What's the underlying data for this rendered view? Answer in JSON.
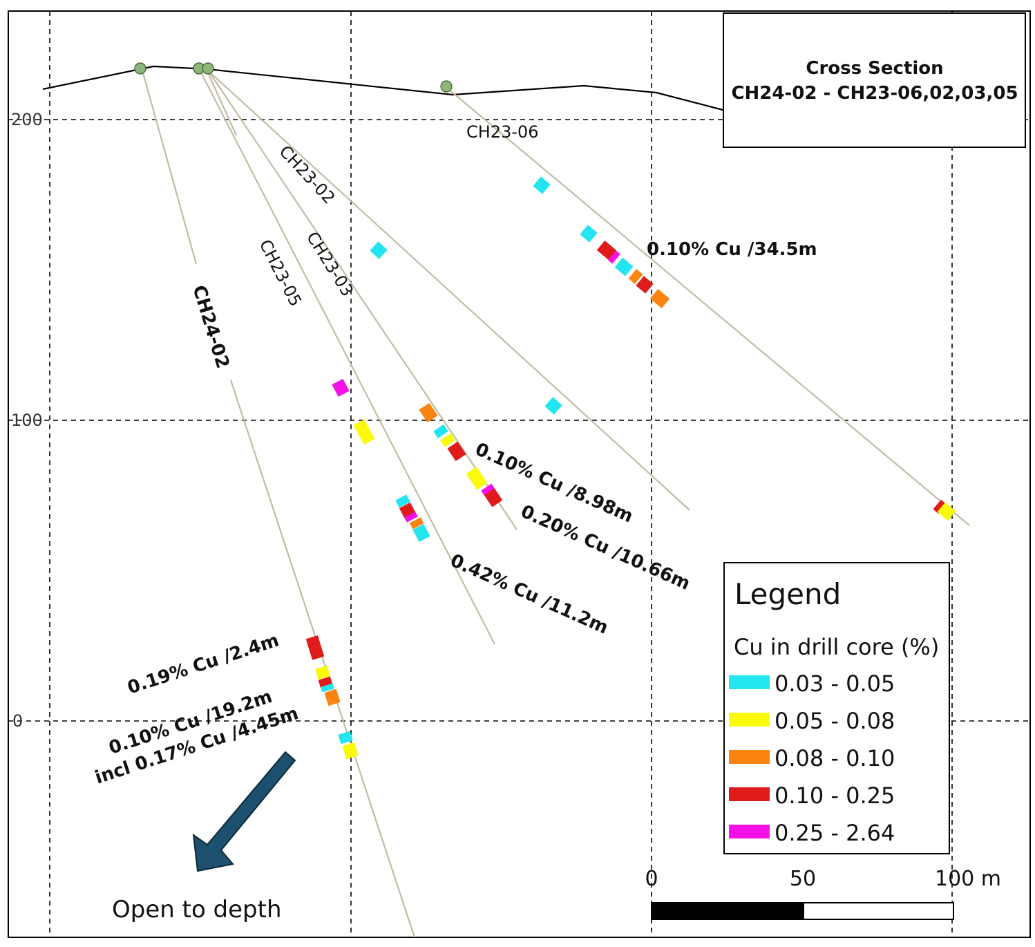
{
  "title": {
    "line1": "Cross Section",
    "line2": "CH24-02 - CH23-06,02,03,05"
  },
  "axis": {
    "elevation_labels": [
      "200",
      "100",
      "0"
    ]
  },
  "holes": {
    "ch24_02": "CH24-02",
    "ch23_05": "CH23-05",
    "ch23_03": "CH23-03",
    "ch23_02": "CH23-02",
    "ch23_06": "CH23-06"
  },
  "intercepts": {
    "ch23_06": "0.10% Cu /34.5m",
    "ch23_02": "0.10% Cu /8.98m",
    "ch23_03": "0.20% Cu /10.66m",
    "ch23_05": "0.42% Cu /11.2m",
    "ch24_02_a": "0.19% Cu /2.4m",
    "ch24_02_b": "0.10% Cu /19.2m",
    "ch24_02_c": "incl 0.17% Cu /4.45m"
  },
  "legend": {
    "title": "Legend",
    "subtitle": "Cu in drill core (%)",
    "items": [
      {
        "label": "0.03 - 0.05",
        "color": "#22e5ef"
      },
      {
        "label": "0.05 - 0.08",
        "color": "#fafa0a"
      },
      {
        "label": "0.08 - 0.10",
        "color": "#fb8410"
      },
      {
        "label": "0.10 - 0.25",
        "color": "#e01b1b"
      },
      {
        "label": "0.25 - 2.64",
        "color": "#f510e8"
      }
    ]
  },
  "scale_bar": {
    "labels": [
      "0",
      "50",
      "100 m"
    ]
  },
  "annotation": {
    "open_to_depth": "Open to depth"
  },
  "colors": {
    "trace": "#c2bca4",
    "collar": "#8fb67a",
    "arrow": "#1d4f6e",
    "cyan": "#22e5ef",
    "yellow": "#fafa0a",
    "orange": "#fb8410",
    "red": "#e01b1b",
    "magenta": "#f510e8"
  }
}
